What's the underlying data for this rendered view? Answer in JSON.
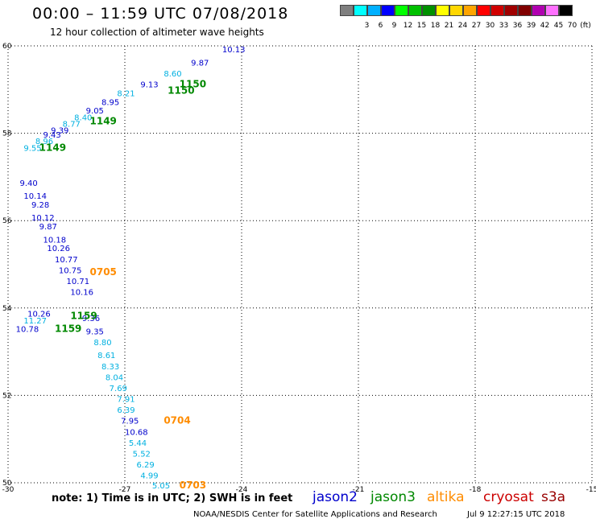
{
  "header": {
    "title": "00:00 – 11:59 UTC 07/08/2018",
    "subtitle": "12 hour collection of altimeter wave heights"
  },
  "colorbar": {
    "unit": "(ft)",
    "bins": [
      {
        "label": "",
        "color": "#7f7f7f"
      },
      {
        "label": "3",
        "color": "#00ffff"
      },
      {
        "label": "6",
        "color": "#00b0ff"
      },
      {
        "label": "9",
        "color": "#0000ff"
      },
      {
        "label": "12",
        "color": "#00ff00"
      },
      {
        "label": "15",
        "color": "#00c000"
      },
      {
        "label": "18",
        "color": "#009000"
      },
      {
        "label": "21",
        "color": "#ffff00"
      },
      {
        "label": "24",
        "color": "#ffd700"
      },
      {
        "label": "27",
        "color": "#ffa500"
      },
      {
        "label": "30",
        "color": "#ff0000"
      },
      {
        "label": "33",
        "color": "#d00000"
      },
      {
        "label": "36",
        "color": "#a00000"
      },
      {
        "label": "39",
        "color": "#800000"
      },
      {
        "label": "42",
        "color": "#b000b0"
      },
      {
        "label": "45",
        "color": "#ff70ff"
      },
      {
        "label": "70",
        "color": "#000000"
      }
    ]
  },
  "colors": {
    "jason2": "#0000cc",
    "jason3": "#008800",
    "altika": "#ff8c00",
    "cryosat": "#cc0000",
    "s3a": "#990000",
    "light": "#00b0e0",
    "dark": "#0000cc"
  },
  "chart_data": {
    "type": "scatter",
    "xlim": [
      -30,
      -15
    ],
    "ylim": [
      50,
      60
    ],
    "x_ticks": [
      -30,
      -27,
      -24,
      -21,
      -18,
      -15
    ],
    "y_ticks": [
      50,
      52,
      54,
      56,
      58,
      60
    ],
    "grid": true,
    "x_tick_labels": [
      "-30",
      "-27",
      "-24",
      "-21",
      "-18",
      "-15"
    ],
    "y_tick_labels": [
      "50",
      "52",
      "54",
      "56",
      "58",
      "60"
    ],
    "wave_labels": [
      {
        "lon": -29.6,
        "lat": 57.6,
        "text": "9.55",
        "c": "light"
      },
      {
        "lon": -29.3,
        "lat": 57.75,
        "text": "8.96",
        "c": "light"
      },
      {
        "lon": -29.1,
        "lat": 57.9,
        "text": "9.43",
        "c": "dark"
      },
      {
        "lon": -28.9,
        "lat": 58.0,
        "text": "9.39",
        "c": "dark"
      },
      {
        "lon": -28.6,
        "lat": 58.15,
        "text": "8.77",
        "c": "light"
      },
      {
        "lon": -28.3,
        "lat": 58.3,
        "text": "8.40",
        "c": "light"
      },
      {
        "lon": -28.0,
        "lat": 58.45,
        "text": "9.05",
        "c": "dark"
      },
      {
        "lon": -27.6,
        "lat": 58.65,
        "text": "8.95",
        "c": "dark"
      },
      {
        "lon": -27.2,
        "lat": 58.85,
        "text": "8.21",
        "c": "light"
      },
      {
        "lon": -26.6,
        "lat": 59.05,
        "text": "9.13",
        "c": "dark"
      },
      {
        "lon": -26.0,
        "lat": 59.3,
        "text": "8.60",
        "c": "light"
      },
      {
        "lon": -25.3,
        "lat": 59.55,
        "text": "9.87",
        "c": "dark"
      },
      {
        "lon": -24.5,
        "lat": 59.85,
        "text": "10.13",
        "c": "dark"
      },
      {
        "lon": -29.7,
        "lat": 56.8,
        "text": "9.40",
        "c": "dark"
      },
      {
        "lon": -29.6,
        "lat": 56.5,
        "text": "10.14",
        "c": "dark"
      },
      {
        "lon": -29.4,
        "lat": 56.3,
        "text": "9.28",
        "c": "dark"
      },
      {
        "lon": -29.4,
        "lat": 56.0,
        "text": "10.12",
        "c": "dark"
      },
      {
        "lon": -29.2,
        "lat": 55.8,
        "text": "9.87",
        "c": "dark"
      },
      {
        "lon": -29.1,
        "lat": 55.5,
        "text": "10.18",
        "c": "dark"
      },
      {
        "lon": -29.0,
        "lat": 55.3,
        "text": "10.26",
        "c": "dark"
      },
      {
        "lon": -28.8,
        "lat": 55.05,
        "text": "10.77",
        "c": "dark"
      },
      {
        "lon": -28.7,
        "lat": 54.8,
        "text": "10.75",
        "c": "dark"
      },
      {
        "lon": -28.5,
        "lat": 54.55,
        "text": "10.71",
        "c": "dark"
      },
      {
        "lon": -28.4,
        "lat": 54.3,
        "text": "10.16",
        "c": "dark"
      },
      {
        "lon": -29.5,
        "lat": 53.8,
        "text": "10.26",
        "c": "dark"
      },
      {
        "lon": -29.6,
        "lat": 53.65,
        "text": "11.27",
        "c": "light"
      },
      {
        "lon": -29.8,
        "lat": 53.45,
        "text": "10.78",
        "c": "dark"
      },
      {
        "lon": -28.1,
        "lat": 53.7,
        "text": "9.36",
        "c": "dark"
      },
      {
        "lon": -28.0,
        "lat": 53.4,
        "text": "9.35",
        "c": "dark"
      },
      {
        "lon": -27.8,
        "lat": 53.15,
        "text": "8.80",
        "c": "light"
      },
      {
        "lon": -27.7,
        "lat": 52.85,
        "text": "8.61",
        "c": "light"
      },
      {
        "lon": -27.6,
        "lat": 52.6,
        "text": "8.33",
        "c": "light"
      },
      {
        "lon": -27.5,
        "lat": 52.35,
        "text": "8.04",
        "c": "light"
      },
      {
        "lon": -27.4,
        "lat": 52.1,
        "text": "7.69",
        "c": "light"
      },
      {
        "lon": -27.2,
        "lat": 51.85,
        "text": "7.91",
        "c": "light"
      },
      {
        "lon": -27.2,
        "lat": 51.6,
        "text": "6.39",
        "c": "light"
      },
      {
        "lon": -27.1,
        "lat": 51.35,
        "text": "7.95",
        "c": "dark"
      },
      {
        "lon": -27.0,
        "lat": 51.1,
        "text": "10.68",
        "c": "dark"
      },
      {
        "lon": -26.9,
        "lat": 50.85,
        "text": "5.44",
        "c": "light"
      },
      {
        "lon": -26.8,
        "lat": 50.6,
        "text": "5.52",
        "c": "light"
      },
      {
        "lon": -26.7,
        "lat": 50.35,
        "text": "6.29",
        "c": "light"
      },
      {
        "lon": -26.6,
        "lat": 50.1,
        "text": "4.99",
        "c": "light"
      },
      {
        "lon": -26.3,
        "lat": 49.87,
        "text": "5.05",
        "c": "light"
      }
    ],
    "time_labels": [
      {
        "lon": -29.2,
        "lat": 57.6,
        "text": "1149",
        "c": "jason3"
      },
      {
        "lon": -27.9,
        "lat": 58.2,
        "text": "1149",
        "c": "jason3"
      },
      {
        "lon": -25.9,
        "lat": 58.9,
        "text": "1150",
        "c": "jason3"
      },
      {
        "lon": -25.6,
        "lat": 59.05,
        "text": "1150",
        "c": "jason3"
      },
      {
        "lon": -28.8,
        "lat": 53.45,
        "text": "1159",
        "c": "jason3"
      },
      {
        "lon": -28.4,
        "lat": 53.75,
        "text": "1159",
        "c": "jason3"
      },
      {
        "lon": -27.9,
        "lat": 54.75,
        "text": "0705",
        "c": "altika"
      },
      {
        "lon": -26.0,
        "lat": 51.35,
        "text": "0704",
        "c": "altika"
      },
      {
        "lon": -25.6,
        "lat": 49.87,
        "text": "0703",
        "c": "altika"
      }
    ]
  },
  "footer": {
    "note": "note: 1) Time is in UTC; 2) SWH is in feet",
    "legend": [
      "jason2",
      "jason3",
      "altika",
      "cryosat",
      "s3a"
    ],
    "credit": "NOAA/NESDIS Center for Satellite Applications and Research",
    "timestamp": "Jul  9 12:27:15 UTC 2018"
  }
}
